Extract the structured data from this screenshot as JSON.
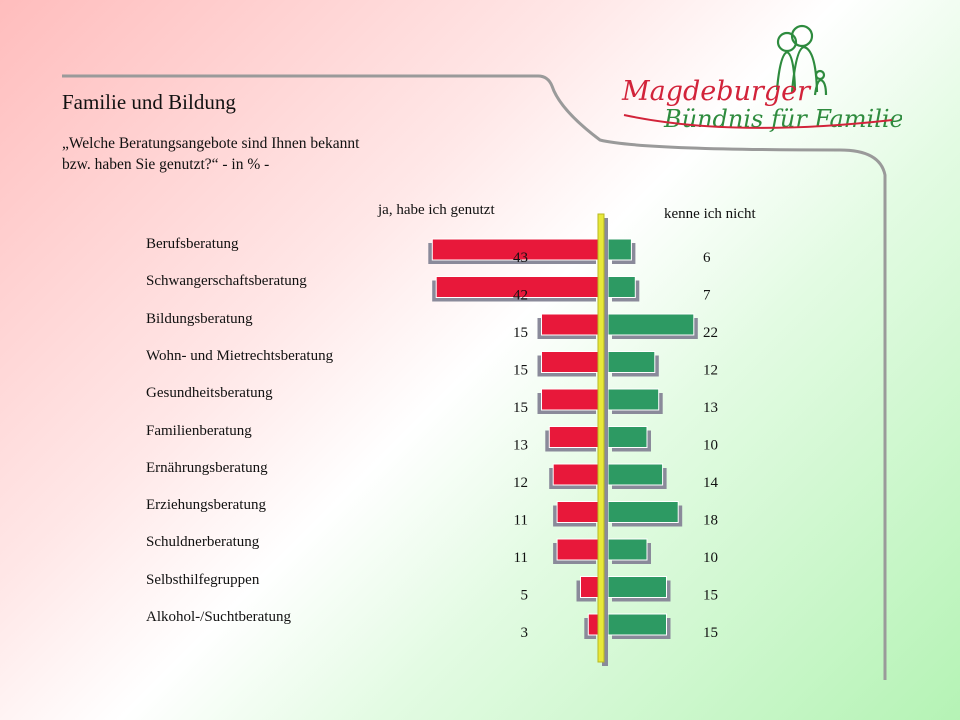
{
  "title": "Familie und Bildung",
  "question_line1": "„Welche Beratungsangebote sind Ihnen bekannt",
  "question_line2": "bzw. haben Sie genutzt?“ - in % -",
  "logo": {
    "line1": "Magdeburger",
    "line2": "Bündnis für Familie",
    "red": "#d2233a",
    "green": "#2e8b3e"
  },
  "colors": {
    "used": "#e8183a",
    "unknown": "#2d9a63",
    "divider": "#e8e83a",
    "shadow": "#8a8a9a"
  },
  "chart_data": {
    "type": "bar",
    "orientation": "horizontal-diverging",
    "categories": [
      "Berufsberatung",
      "Schwangerschaftsberatung",
      "Bildungsberatung",
      "Wohn- und Mietrechtsberatung",
      "Gesundheitsberatung",
      "Familienberatung",
      "Ernährungsberatung",
      "Erziehungsberatung",
      "Schuldnerberatung",
      "Selbsthilfegruppen",
      "Alkohol-/Suchtberatung"
    ],
    "series": [
      {
        "name": "ja, habe ich genutzt",
        "values": [
          43,
          42,
          15,
          15,
          15,
          13,
          12,
          11,
          11,
          5,
          3
        ]
      },
      {
        "name": "kenne ich nicht",
        "values": [
          6,
          7,
          22,
          12,
          13,
          10,
          14,
          18,
          10,
          15,
          15
        ]
      }
    ]
  }
}
